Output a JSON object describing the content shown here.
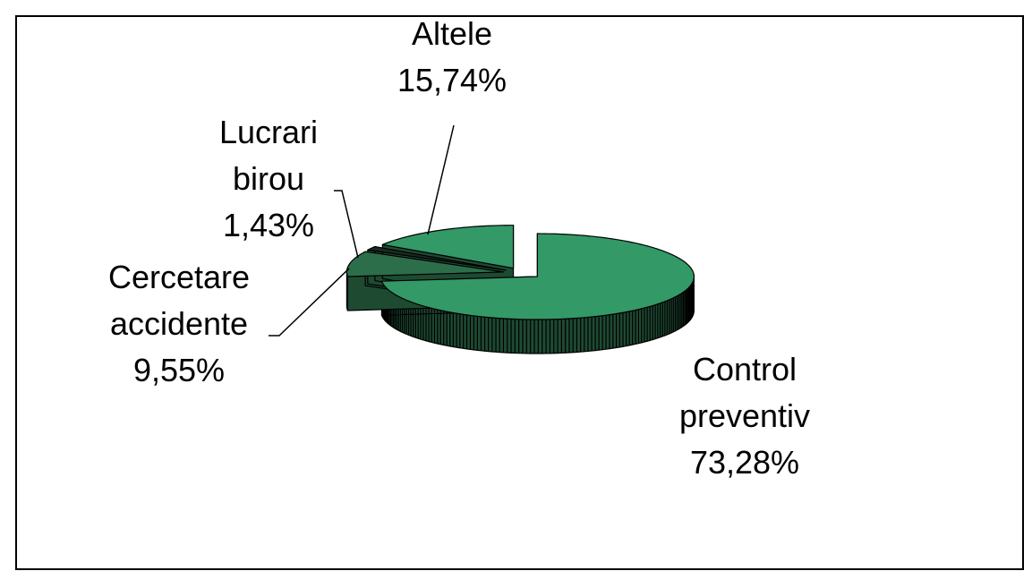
{
  "chart_data": {
    "type": "pie3d",
    "categories": [
      "Control preventiv",
      "Cercetare accidente",
      "Lucrari birou",
      "Altele"
    ],
    "values": [
      73.28,
      9.55,
      1.43,
      15.74
    ],
    "value_labels": [
      "73,28%",
      "9,55%",
      "1,43%",
      "15,74%"
    ],
    "colors": [
      "#339966",
      "#2d6e4a",
      "#1a2a20",
      "#339966"
    ],
    "side_color": "#1e4a32"
  }
}
